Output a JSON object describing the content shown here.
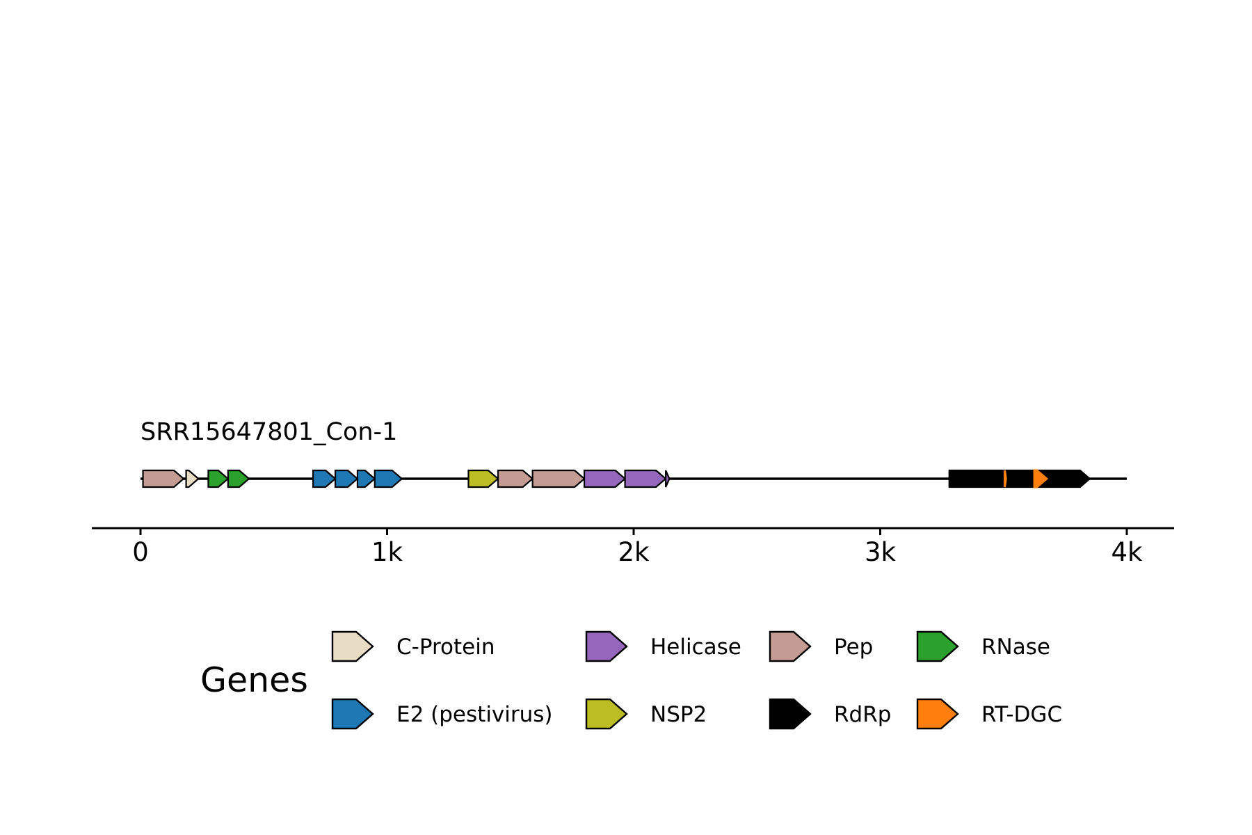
{
  "track": {
    "label": "SRR15647801_Con-1"
  },
  "axis": {
    "xlim": [
      0,
      4000
    ],
    "ticks": [
      {
        "value": 0,
        "label": "0"
      },
      {
        "value": 1000,
        "label": "1k"
      },
      {
        "value": 2000,
        "label": "2k"
      },
      {
        "value": 3000,
        "label": "3k"
      },
      {
        "value": 4000,
        "label": "4k"
      }
    ]
  },
  "genes": [
    {
      "name": "Pep",
      "start": 10,
      "end": 175
    },
    {
      "name": "C-Protein",
      "start": 185,
      "end": 235
    },
    {
      "name": "RNase",
      "start": 275,
      "end": 355
    },
    {
      "name": "RNase",
      "start": 355,
      "end": 440
    },
    {
      "name": "E2 (pestivirus)",
      "start": 700,
      "end": 790
    },
    {
      "name": "E2 (pestivirus)",
      "start": 790,
      "end": 880
    },
    {
      "name": "E2 (pestivirus)",
      "start": 880,
      "end": 950
    },
    {
      "name": "E2 (pestivirus)",
      "start": 950,
      "end": 1060
    },
    {
      "name": "NSP2",
      "start": 1330,
      "end": 1450
    },
    {
      "name": "Pep",
      "start": 1450,
      "end": 1590
    },
    {
      "name": "Pep",
      "start": 1590,
      "end": 1800
    },
    {
      "name": "Helicase",
      "start": 1800,
      "end": 1965
    },
    {
      "name": "Helicase",
      "start": 1965,
      "end": 2130
    },
    {
      "name": "Helicase",
      "start": 2130,
      "end": 2145
    },
    {
      "name": "RdRp",
      "start": 3280,
      "end": 3850
    },
    {
      "name": "RT-DGC",
      "start": 3505,
      "end": 3510
    },
    {
      "name": "RT-DGC",
      "start": 3625,
      "end": 3675
    }
  ],
  "legend": {
    "title": "Genes",
    "items": [
      {
        "label": "C-Protein",
        "color": "#e8dcc4"
      },
      {
        "label": "E2 (pestivirus)",
        "color": "#1f77b4"
      },
      {
        "label": "Helicase",
        "color": "#9467bd"
      },
      {
        "label": "NSP2",
        "color": "#bcbd22"
      },
      {
        "label": "Pep",
        "color": "#c49c94"
      },
      {
        "label": "RdRp",
        "color": "#000000"
      },
      {
        "label": "RNase",
        "color": "#2ca02c"
      },
      {
        "label": "RT-DGC",
        "color": "#ff7f0e"
      }
    ]
  }
}
